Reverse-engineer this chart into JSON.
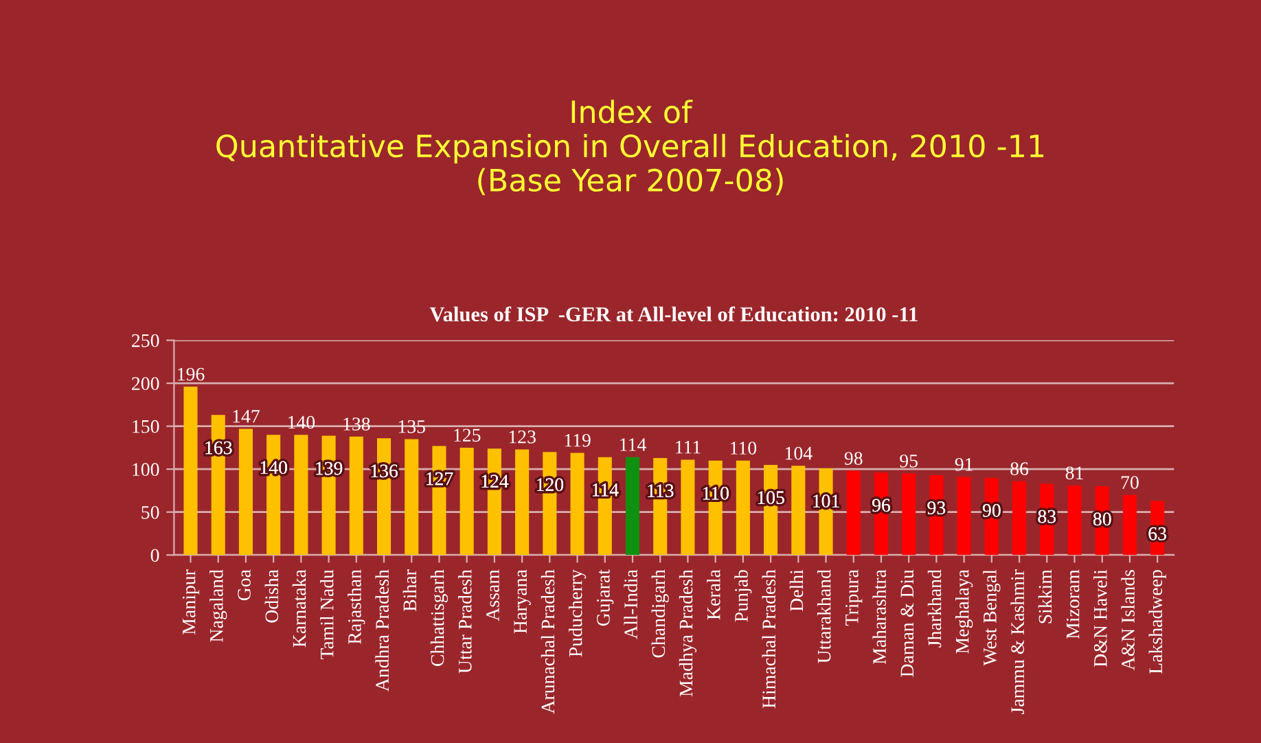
{
  "chart_data": {
    "type": "bar",
    "title": "Index of\nQuantitative Expansion in Overall Education, 2010 -11\n(Base Year 2007-08)",
    "subtitle": "Values of ISP  -GER at All-level of Education: 2010 -11",
    "categories": [
      "Manipur",
      "Nagaland",
      "Goa",
      "Odisha",
      "Karnataka",
      "Tamil Nadu",
      "Rajasthan",
      "Andhra Pradesh",
      "Bihar",
      "Chhattisgarh",
      "Uttar Pradesh",
      "Assam",
      "Haryana",
      "Arunachal Pradesh",
      "Puducherry",
      "Gujarat",
      "All-India",
      "Chandigarh",
      "Madhya Pradesh",
      "Kerala",
      "Punjab",
      "Himachal Pradesh",
      "Delhi",
      "Uttarakhand",
      "Tripura",
      "Maharashtra",
      "Daman & Diu",
      "Jharkhand",
      "Meghalaya",
      "West Bengal",
      "Jammu & Kashmir",
      "Sikkim",
      "Mizoram",
      "D&N Haveli",
      "A&N Islands",
      "Lakshadweep"
    ],
    "values": [
      196,
      163,
      147,
      140,
      140,
      139,
      138,
      136,
      135,
      127,
      125,
      124,
      123,
      120,
      119,
      114,
      114,
      113,
      111,
      110,
      110,
      105,
      104,
      101,
      98,
      96,
      95,
      93,
      91,
      90,
      86,
      83,
      81,
      80,
      70,
      63
    ],
    "colors": [
      "#ffc000",
      "#ffc000",
      "#ffc000",
      "#ffc000",
      "#ffc000",
      "#ffc000",
      "#ffc000",
      "#ffc000",
      "#ffc000",
      "#ffc000",
      "#ffc000",
      "#ffc000",
      "#ffc000",
      "#ffc000",
      "#ffc000",
      "#ffc000",
      "#109010",
      "#ffc000",
      "#ffc000",
      "#ffc000",
      "#ffc000",
      "#ffc000",
      "#ffc000",
      "#ffc000",
      "#ff0000",
      "#ff0000",
      "#ff0000",
      "#ff0000",
      "#ff0000",
      "#ff0000",
      "#ff0000",
      "#ff0000",
      "#ff0000",
      "#ff0000",
      "#ff0000",
      "#ff0000"
    ],
    "ylim": [
      0,
      250
    ],
    "yticks": [
      0,
      50,
      100,
      150,
      200,
      250
    ],
    "grid": "y",
    "data_labels": true
  }
}
